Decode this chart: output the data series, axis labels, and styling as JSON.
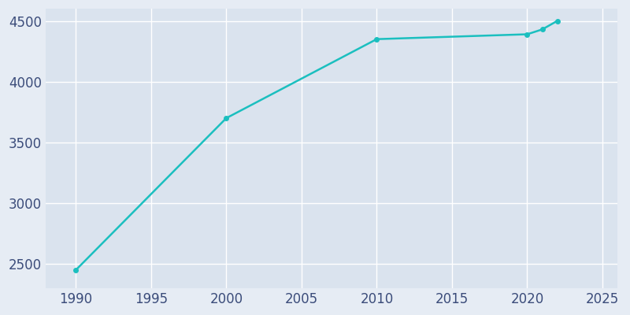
{
  "years": [
    1990,
    2000,
    2010,
    2020,
    2021,
    2022
  ],
  "population": [
    2450,
    3700,
    4350,
    4390,
    4430,
    4500
  ],
  "line_color": "#1BBFBF",
  "marker": "o",
  "marker_size": 4,
  "line_width": 1.8,
  "bg_color": "#E6ECF4",
  "plot_bg_color": "#DAE3EE",
  "xlim": [
    1988,
    2026
  ],
  "ylim": [
    2300,
    4600
  ],
  "xticks": [
    1990,
    1995,
    2000,
    2005,
    2010,
    2015,
    2020,
    2025
  ],
  "yticks": [
    2500,
    3000,
    3500,
    4000,
    4500
  ],
  "grid_color": "#FFFFFF",
  "tick_color": "#3B4C7A",
  "tick_fontsize": 12
}
